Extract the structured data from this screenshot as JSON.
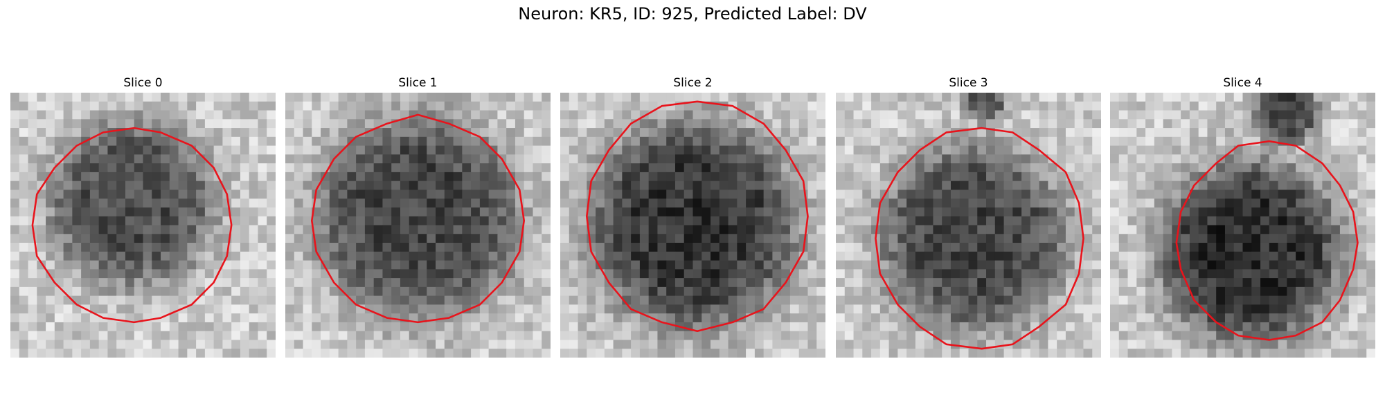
{
  "title": "Neuron: KR5, ID: 925, Predicted Label: DV",
  "panels": [
    {
      "title": "Slice 0"
    },
    {
      "title": "Slice 1"
    },
    {
      "title": "Slice 2"
    },
    {
      "title": "Slice 3"
    },
    {
      "title": "Slice 4"
    }
  ]
}
